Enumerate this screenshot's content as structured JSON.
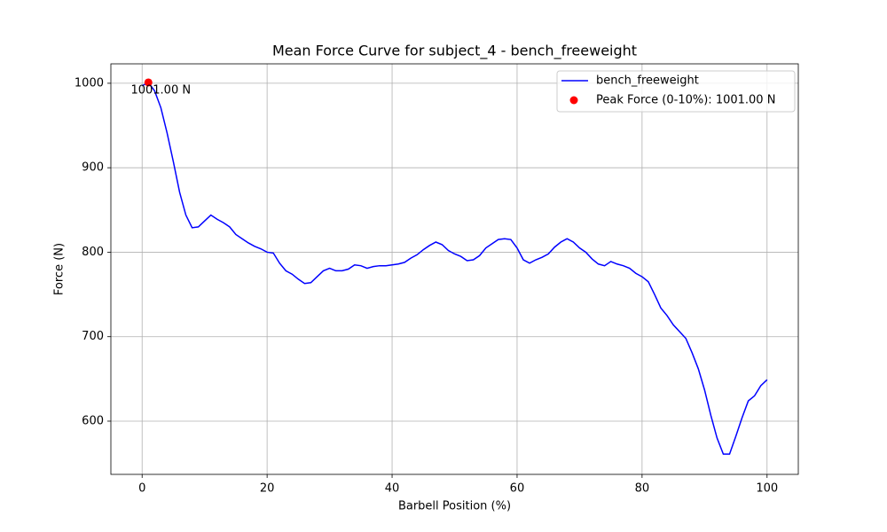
{
  "chart_data": {
    "type": "line",
    "title": "Mean Force Curve for subject_4 - bench_freeweight",
    "x_label": "Barbell Position (%)",
    "y_label": "Force (N)",
    "xlim": [
      -5,
      105
    ],
    "ylim": [
      537,
      1023
    ],
    "xticks": [
      0,
      20,
      40,
      60,
      80,
      100
    ],
    "yticks": [
      600,
      700,
      800,
      900,
      1000
    ],
    "grid": true,
    "legend": "upper right",
    "series": [
      {
        "type": "line",
        "name": "bench_freeweight",
        "color": "#0000ff",
        "x": [
          0,
          1,
          2,
          3,
          4,
          5,
          6,
          7,
          8,
          9,
          10,
          11,
          12,
          13,
          14,
          15,
          16,
          17,
          18,
          19,
          20,
          21,
          22,
          23,
          24,
          25,
          26,
          27,
          28,
          29,
          30,
          31,
          32,
          33,
          34,
          35,
          36,
          37,
          38,
          39,
          40,
          41,
          42,
          43,
          44,
          45,
          46,
          47,
          48,
          49,
          50,
          51,
          52,
          53,
          54,
          55,
          56,
          57,
          58,
          59,
          60,
          61,
          62,
          63,
          64,
          65,
          66,
          67,
          68,
          69,
          70,
          71,
          72,
          73,
          74,
          75,
          76,
          77,
          78,
          79,
          80,
          81,
          82,
          83,
          84,
          85,
          86,
          87,
          88,
          89,
          90,
          91,
          92,
          93,
          94,
          95,
          96,
          97,
          98,
          99,
          100
        ],
        "values": [
          997,
          1001,
          991,
          971,
          941,
          907,
          871,
          844,
          829,
          830,
          837,
          844,
          839,
          835,
          830,
          821,
          816,
          811,
          807,
          804,
          800,
          799,
          787,
          778,
          774,
          768,
          763,
          764,
          771,
          778,
          781,
          778,
          778,
          780,
          785,
          784,
          781,
          783,
          784,
          784,
          785,
          786,
          788,
          793,
          797,
          803,
          808,
          812,
          809,
          802,
          798,
          795,
          790,
          791,
          796,
          805,
          810,
          815,
          816,
          815,
          805,
          791,
          787,
          791,
          794,
          798,
          806,
          812,
          816,
          812,
          805,
          800,
          792,
          786,
          784,
          789,
          786,
          784,
          781,
          775,
          771,
          765,
          750,
          734,
          725,
          714,
          706,
          698,
          681,
          662,
          637,
          607,
          580,
          561,
          561,
          582,
          604,
          624,
          630,
          642,
          649
        ]
      },
      {
        "type": "scatter",
        "name": "Peak Force (0-10%): 1001.00 N",
        "color": "#ff0000",
        "x": [
          1
        ],
        "values": [
          1001
        ]
      }
    ],
    "annotations": [
      {
        "text": "1001.00 N"
      }
    ]
  }
}
